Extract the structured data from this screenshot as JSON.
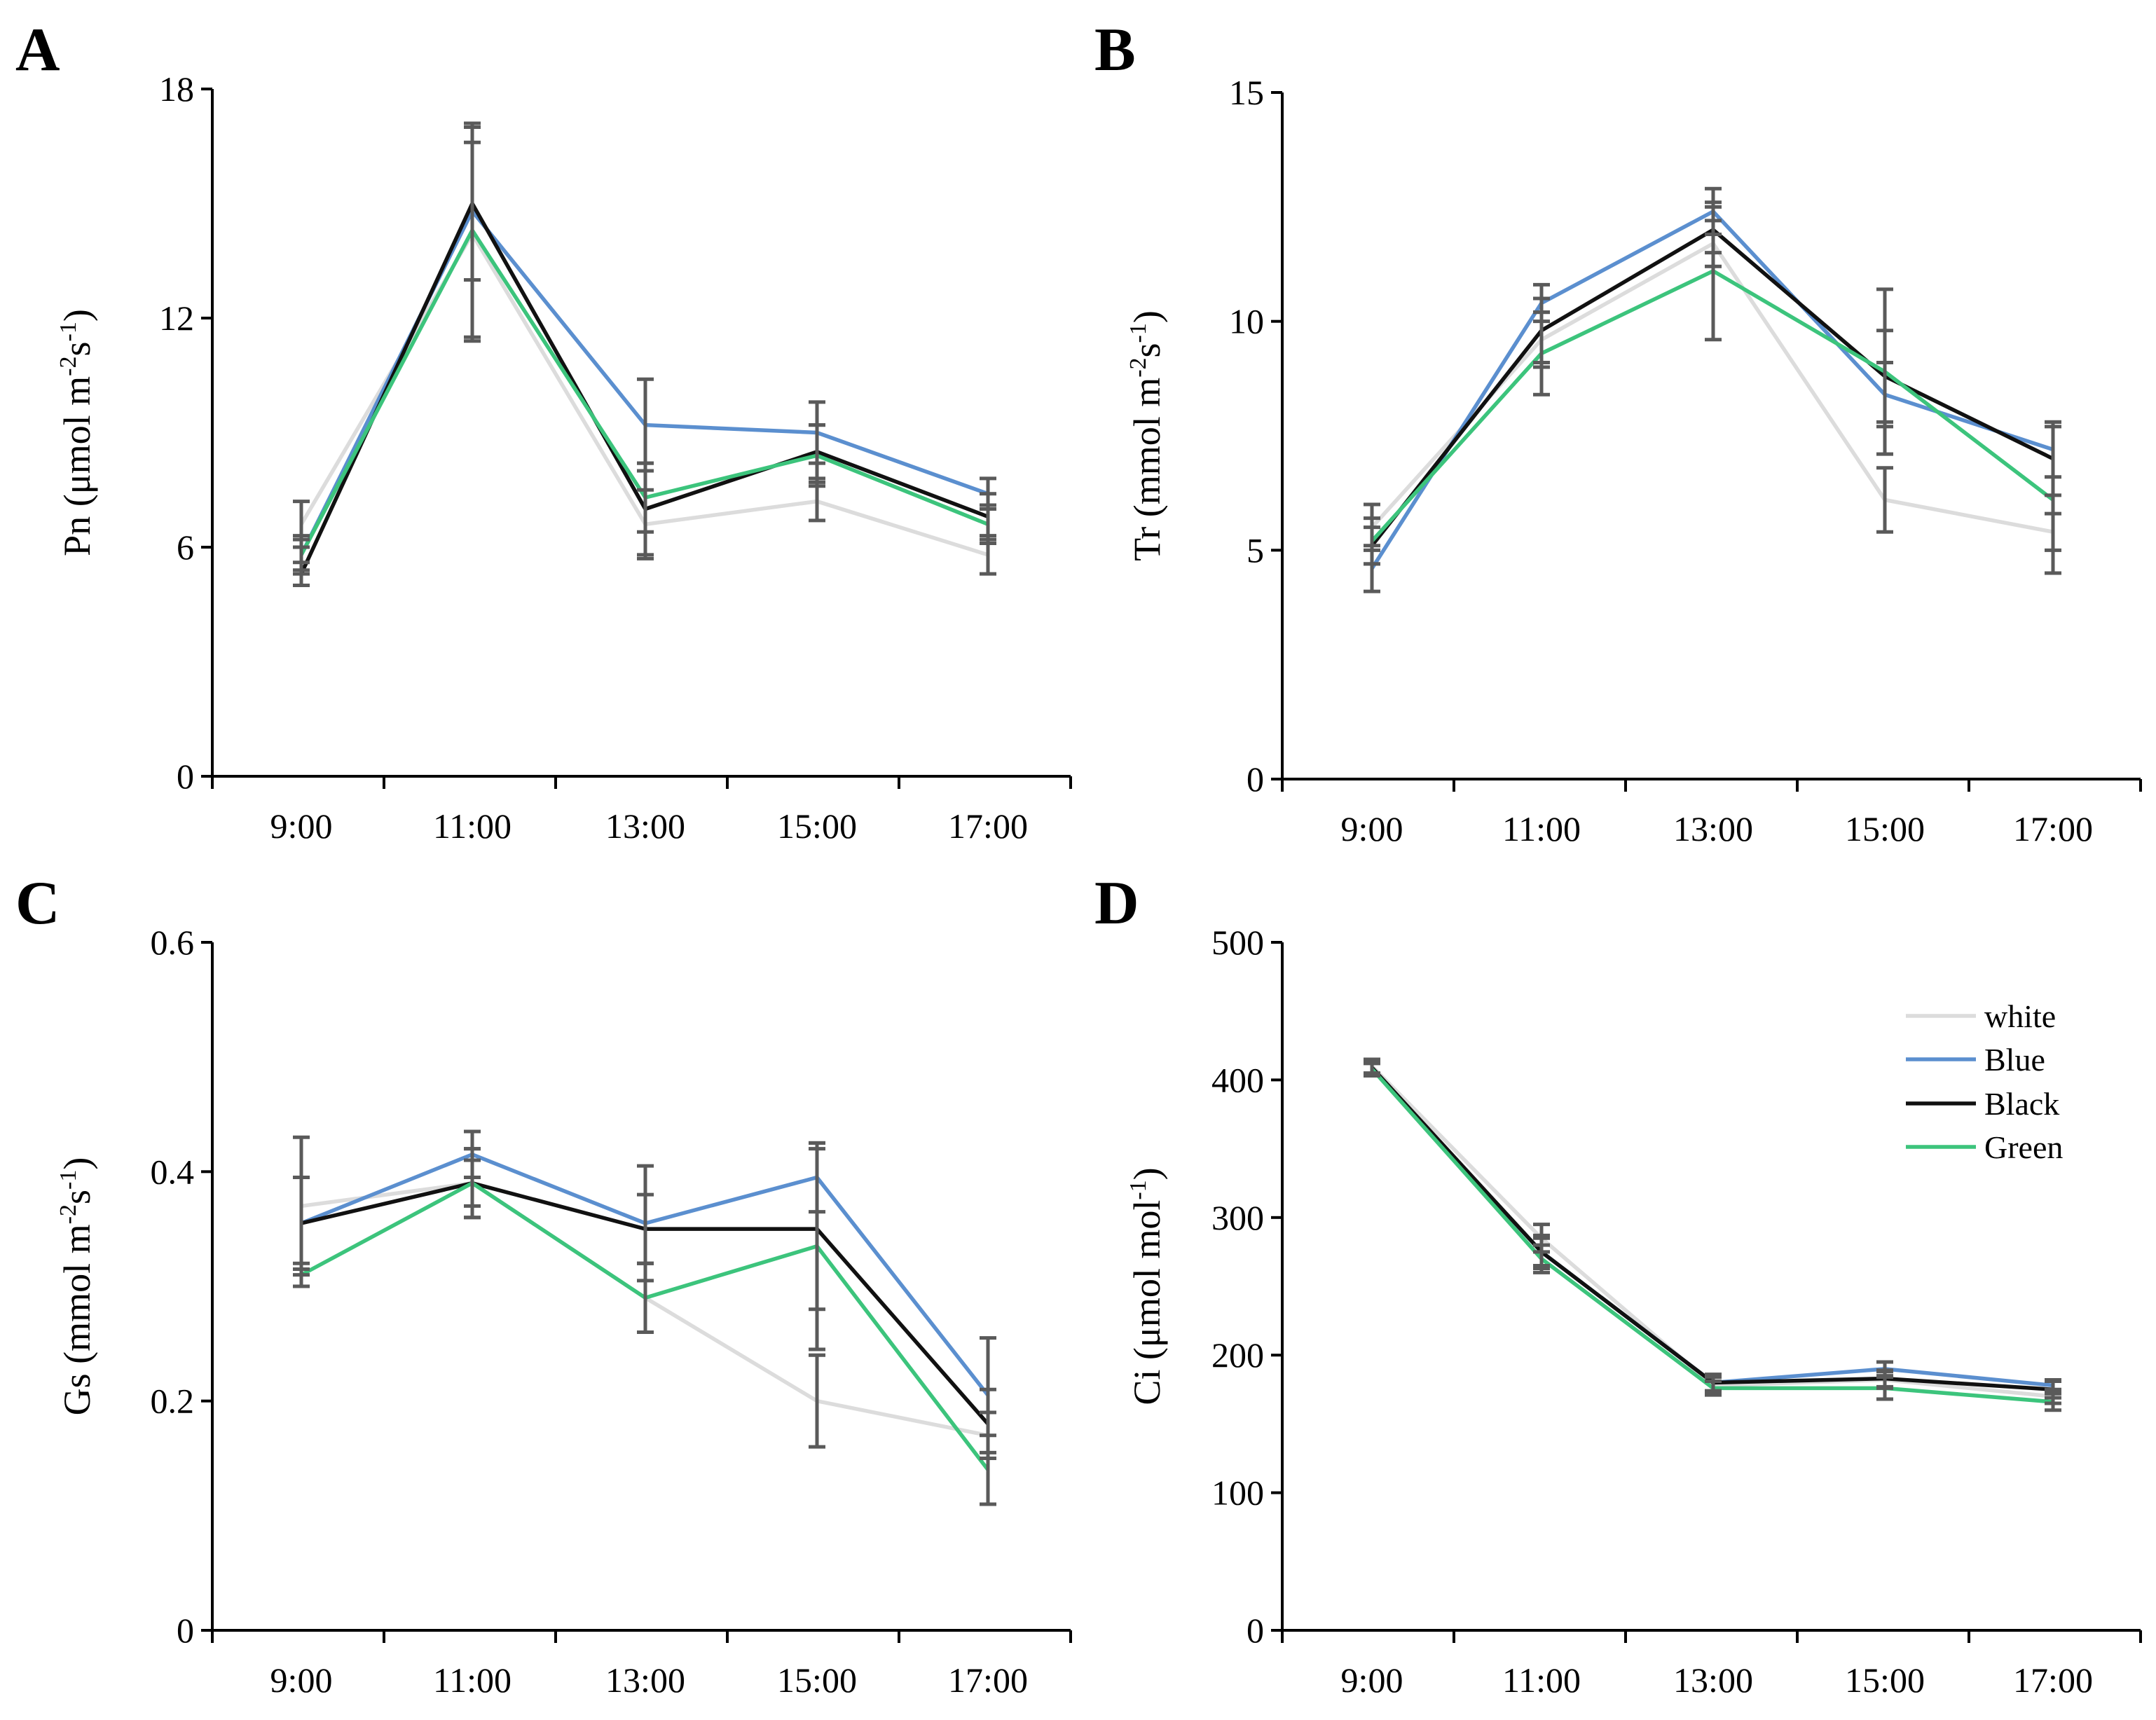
{
  "colors": {
    "white": "#dcdcdc",
    "Blue": "#5b8fcf",
    "Black": "#111111",
    "Green": "#3cc47c",
    "error_bar": "#5a5a5a"
  },
  "legend": {
    "entries": [
      "white",
      "Blue",
      "Black",
      "Green"
    ],
    "placement": "top-right of panel D"
  },
  "chart_data": [
    {
      "panel": "A",
      "type": "line",
      "categories": [
        "9:00",
        "11:00",
        "13:00",
        "15:00",
        "17:00"
      ],
      "ylabel_main": "Pn (μmol m",
      "ylabel_sup1": "-2",
      "ylabel_mid": "s",
      "ylabel_sup2": "-1",
      "ylabel_end": ")",
      "ylim": [
        0,
        18
      ],
      "yticks": [
        0,
        6,
        12,
        18
      ],
      "series": [
        {
          "name": "white",
          "values": [
            6.6,
            14.2,
            6.6,
            7.2,
            5.8
          ],
          "errors": [
            0.6,
            2.8,
            0.9,
            0.5,
            0.5
          ]
        },
        {
          "name": "Blue",
          "values": [
            5.8,
            14.8,
            9.2,
            9.0,
            7.4
          ],
          "errors": [
            0.5,
            1.8,
            1.2,
            0.8,
            0.4
          ]
        },
        {
          "name": "Black",
          "values": [
            5.3,
            15.0,
            7.0,
            8.5,
            6.8
          ],
          "errors": [
            0.3,
            2.0,
            1.2,
            0.7,
            0.6
          ]
        },
        {
          "name": "Green",
          "values": [
            5.8,
            14.3,
            7.3,
            8.4,
            6.6
          ],
          "errors": [
            0.4,
            2.8,
            0.9,
            0.8,
            0.5
          ]
        }
      ]
    },
    {
      "panel": "B",
      "type": "line",
      "categories": [
        "9:00",
        "11:00",
        "13:00",
        "15:00",
        "17:00"
      ],
      "ylabel_main": "Tr (mmol m",
      "ylabel_sup1": "-2",
      "ylabel_mid": "s",
      "ylabel_sup2": "-1",
      "ylabel_end": ")",
      "ylim": [
        0,
        15
      ],
      "yticks": [
        0,
        5,
        10,
        15
      ],
      "series": [
        {
          "name": "white",
          "values": [
            5.5,
            9.6,
            11.7,
            6.1,
            5.4
          ],
          "errors": [
            0.5,
            0.6,
            0.5,
            0.7,
            0.4
          ]
        },
        {
          "name": "Blue",
          "values": [
            4.6,
            10.4,
            12.4,
            8.4,
            7.2
          ],
          "errors": [
            0.5,
            0.4,
            0.5,
            0.7,
            0.6
          ]
        },
        {
          "name": "Black",
          "values": [
            5.1,
            9.8,
            12.0,
            8.8,
            7.0
          ],
          "errors": [
            0.4,
            0.7,
            0.5,
            1.0,
            0.8
          ]
        },
        {
          "name": "Green",
          "values": [
            5.2,
            9.3,
            11.1,
            8.9,
            6.1
          ],
          "errors": [
            0.5,
            0.9,
            1.5,
            1.8,
            1.6
          ]
        }
      ]
    },
    {
      "panel": "C",
      "type": "line",
      "categories": [
        "9:00",
        "11:00",
        "13:00",
        "15:00",
        "17:00"
      ],
      "ylabel_main": "Gs (mmol m",
      "ylabel_sup1": "-2",
      "ylabel_mid": "s",
      "ylabel_sup2": "-1",
      "ylabel_end": ")",
      "ylim": [
        0,
        0.6
      ],
      "yticks": [
        0,
        0.2,
        0.4,
        0.6
      ],
      "series": [
        {
          "name": "white",
          "values": [
            0.37,
            0.39,
            0.29,
            0.2,
            0.17
          ],
          "errors": [
            0.06,
            0.02,
            0.03,
            0.04,
            0.02
          ]
        },
        {
          "name": "Blue",
          "values": [
            0.355,
            0.415,
            0.355,
            0.395,
            0.205
          ],
          "errors": [
            0.04,
            0.02,
            0.05,
            0.03,
            0.05
          ]
        },
        {
          "name": "Black",
          "values": [
            0.355,
            0.39,
            0.35,
            0.35,
            0.18
          ],
          "errors": [
            0.04,
            0.03,
            0.03,
            0.07,
            0.03
          ]
        },
        {
          "name": "Green",
          "values": [
            0.31,
            0.39,
            0.29,
            0.335,
            0.14
          ],
          "errors": [
            0.01,
            0.03,
            0.03,
            0.09,
            0.03
          ]
        }
      ]
    },
    {
      "panel": "D",
      "type": "line",
      "categories": [
        "9:00",
        "11:00",
        "13:00",
        "15:00",
        "17:00"
      ],
      "ylabel_main": "Ci (μmol mol",
      "ylabel_sup1": "-1",
      "ylabel_mid": "",
      "ylabel_sup2": "",
      "ylabel_end": ")",
      "ylim": [
        0,
        500
      ],
      "yticks": [
        0,
        100,
        200,
        300,
        400,
        500
      ],
      "series": [
        {
          "name": "white",
          "values": [
            410,
            285,
            178,
            182,
            170
          ],
          "errors": [
            5,
            10,
            6,
            6,
            5
          ]
        },
        {
          "name": "Blue",
          "values": [
            408,
            275,
            180,
            190,
            178
          ],
          "errors": [
            5,
            10,
            6,
            5,
            4
          ]
        },
        {
          "name": "Black",
          "values": [
            409,
            275,
            180,
            183,
            175
          ],
          "errors": [
            5,
            12,
            6,
            6,
            6
          ]
        },
        {
          "name": "Green",
          "values": [
            408,
            270,
            176,
            176,
            166
          ],
          "errors": [
            4,
            10,
            5,
            8,
            6
          ]
        }
      ]
    }
  ]
}
